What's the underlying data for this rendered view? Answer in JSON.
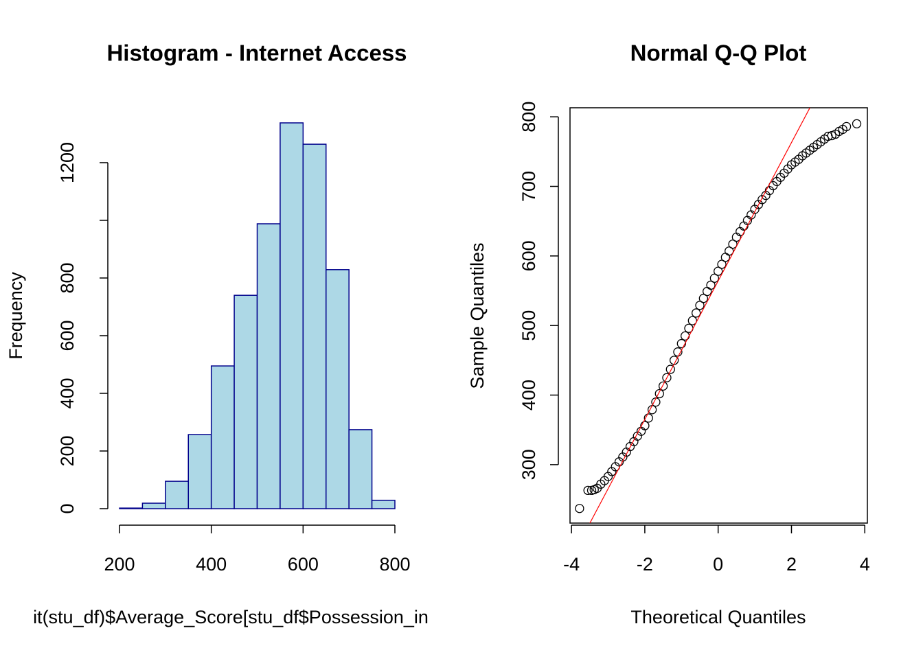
{
  "chart_data": [
    {
      "type": "histogram",
      "title": "Histogram - Internet Access",
      "x_label": "it(stu_df)$Average_Score[stu_df$Possession_in",
      "y_label": "Frequency",
      "bins": [
        200,
        250,
        300,
        350,
        400,
        450,
        500,
        550,
        600,
        650,
        700,
        750,
        800
      ],
      "values": [
        2,
        19,
        95,
        257,
        495,
        740,
        988,
        1338,
        1264,
        829,
        274,
        29
      ],
      "color": "#add8e6",
      "edge_color": "#00008b",
      "xlim": [
        200,
        800
      ],
      "xticks": [
        200,
        400,
        600,
        800
      ],
      "ylim": [
        0,
        1338
      ],
      "yticks": [
        0,
        200,
        400,
        600,
        800,
        {
          "value": 1000,
          "label": null
        },
        1200
      ]
    },
    {
      "type": "scatter",
      "title": "Normal Q-Q Plot",
      "x_label": "Theoretical Quantiles",
      "y_label": "Sample Quantiles",
      "x": [
        -3.78,
        -3.55,
        -3.45,
        -3.38,
        -3.3,
        -3.2,
        -3.1,
        -3.0,
        -2.9,
        -2.8,
        -2.7,
        -2.6,
        -2.5,
        -2.4,
        -2.3,
        -2.2,
        -2.1,
        -2.0,
        -1.9,
        -1.8,
        -1.7,
        -1.6,
        -1.5,
        -1.4,
        -1.3,
        -1.2,
        -1.1,
        -1.0,
        -0.9,
        -0.8,
        -0.7,
        -0.6,
        -0.5,
        -0.4,
        -0.3,
        -0.2,
        -0.1,
        0,
        0.1,
        0.2,
        0.3,
        0.4,
        0.5,
        0.6,
        0.7,
        0.8,
        0.9,
        1.0,
        1.1,
        1.2,
        1.3,
        1.4,
        1.5,
        1.6,
        1.7,
        1.8,
        1.9,
        2.0,
        2.1,
        2.2,
        2.3,
        2.4,
        2.5,
        2.6,
        2.7,
        2.8,
        2.9,
        3.0,
        3.1,
        3.2,
        3.3,
        3.4,
        3.5,
        3.78
      ],
      "values": [
        237,
        263,
        263,
        264,
        266,
        272,
        277,
        283,
        290,
        297,
        304,
        311,
        318,
        326,
        333,
        341,
        348,
        356,
        367,
        379,
        390,
        402,
        413,
        425,
        437,
        450,
        462,
        474,
        485,
        496,
        507,
        518,
        529,
        539,
        549,
        558,
        568,
        578,
        588,
        598,
        607,
        617,
        627,
        635,
        643,
        651,
        659,
        667,
        674,
        681,
        687,
        694,
        701,
        707,
        713,
        719,
        725,
        731,
        735,
        739,
        744,
        748,
        752,
        756,
        760,
        764,
        768,
        772,
        773,
        775,
        779,
        782,
        786,
        790
      ],
      "color": "#000000",
      "line": {
        "intercept": 564,
        "slope": 99.5,
        "color": "#ff0000"
      },
      "xlim": [
        -4.04,
        4.07
      ],
      "xticks": [
        -4,
        -2,
        0,
        2,
        4
      ],
      "ylim": [
        216,
        813
      ],
      "yticks": [
        300,
        400,
        500,
        600,
        700,
        800
      ]
    }
  ]
}
